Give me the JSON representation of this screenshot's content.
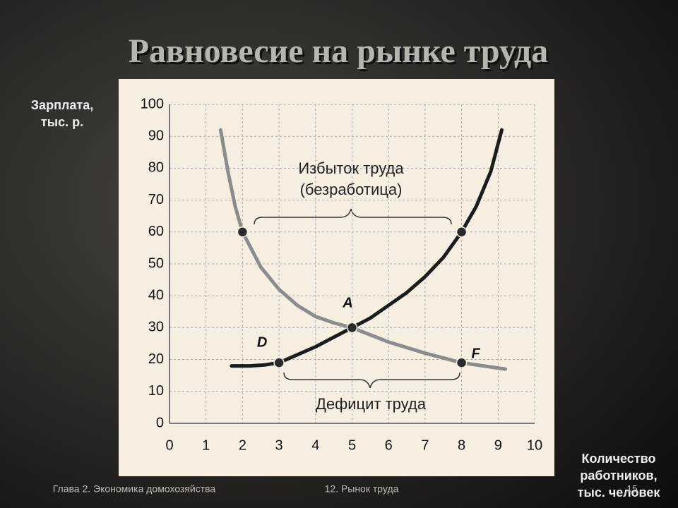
{
  "title": "Равновесие на рынке труда",
  "chart_data": {
    "type": "line",
    "y_label": [
      "Зарплата,",
      "тыс. р."
    ],
    "x_label": [
      "Количество",
      "работников,",
      "тыс. человек"
    ],
    "xlim": [
      0,
      10
    ],
    "ylim": [
      0,
      100
    ],
    "xticks": [
      0,
      1,
      2,
      3,
      4,
      5,
      6,
      7,
      8,
      9,
      10
    ],
    "yticks": [
      0,
      10,
      20,
      30,
      40,
      50,
      60,
      70,
      80,
      90,
      100
    ],
    "grid": true,
    "series": [
      {
        "color": "#8c8c8c",
        "x": [
          1.4,
          1.6,
          1.8,
          2,
          2.5,
          3,
          3.5,
          4,
          4.5,
          5,
          6,
          7,
          8,
          9.2
        ],
        "values": [
          92,
          79,
          68,
          60,
          49,
          42,
          37,
          33.5,
          31.5,
          30,
          25.5,
          22,
          19,
          17
        ]
      },
      {
        "color": "#1c1c1c",
        "x": [
          1.7,
          2.2,
          2.6,
          3,
          3.5,
          4,
          4.5,
          5,
          5.5,
          6,
          6.5,
          7,
          7.5,
          8,
          8.4,
          8.8,
          9.1
        ],
        "values": [
          18,
          18,
          18.3,
          19,
          21.5,
          24,
          27,
          30,
          33,
          37,
          41,
          46,
          52,
          60,
          68,
          79,
          92
        ]
      }
    ],
    "points": [
      {
        "x": 2,
        "y": 60,
        "label": null
      },
      {
        "x": 8,
        "y": 60,
        "label": null
      },
      {
        "x": 5,
        "y": 30,
        "label": "A"
      },
      {
        "x": 3,
        "y": 19,
        "label": "D"
      },
      {
        "x": 8,
        "y": 19,
        "label": "F"
      }
    ],
    "annotations": [
      "Избыток труда",
      "(безработица)",
      "Дефицит труда"
    ]
  },
  "footer": {
    "left": "Глава 2. Экономика домохозяйства",
    "center": "12. Рынок труда",
    "page": "15"
  }
}
